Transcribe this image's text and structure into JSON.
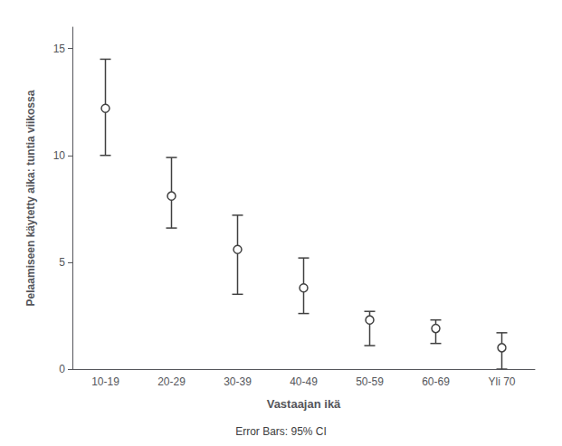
{
  "chart_data": {
    "type": "errorbar",
    "categories": [
      "10-19",
      "20-29",
      "30-39",
      "40-49",
      "50-59",
      "60-69",
      "Yli 70"
    ],
    "values": [
      12.2,
      8.1,
      5.6,
      3.8,
      2.3,
      1.9,
      1.0
    ],
    "ci_lower": [
      10.0,
      6.6,
      3.5,
      2.6,
      1.1,
      1.2,
      0.0
    ],
    "ci_upper": [
      14.5,
      9.9,
      7.2,
      5.2,
      2.7,
      2.3,
      1.7
    ],
    "xlabel": "Vastaajan ikä",
    "ylabel": "Pelaamiseen käytetty aika: tuntia viikossa",
    "annotation": "Error Bars: 95% CI",
    "ylim": [
      0,
      16
    ],
    "yticks": [
      0,
      5,
      10,
      15
    ],
    "grid": false,
    "color": "#404040",
    "marker": "circle"
  }
}
